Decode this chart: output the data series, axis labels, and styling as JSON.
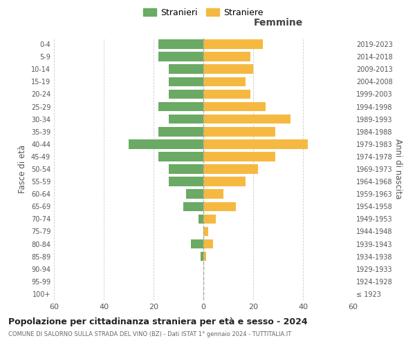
{
  "age_groups": [
    "100+",
    "95-99",
    "90-94",
    "85-89",
    "80-84",
    "75-79",
    "70-74",
    "65-69",
    "60-64",
    "55-59",
    "50-54",
    "45-49",
    "40-44",
    "35-39",
    "30-34",
    "25-29",
    "20-24",
    "15-19",
    "10-14",
    "5-9",
    "0-4"
  ],
  "birth_years": [
    "≤ 1923",
    "1924-1928",
    "1929-1933",
    "1934-1938",
    "1939-1943",
    "1944-1948",
    "1949-1953",
    "1954-1958",
    "1959-1963",
    "1964-1968",
    "1969-1973",
    "1974-1978",
    "1979-1983",
    "1984-1988",
    "1989-1993",
    "1994-1998",
    "1999-2003",
    "2004-2008",
    "2009-2013",
    "2014-2018",
    "2019-2023"
  ],
  "males": [
    0,
    0,
    0,
    1,
    5,
    0,
    2,
    8,
    7,
    14,
    14,
    18,
    30,
    18,
    14,
    18,
    14,
    14,
    14,
    18,
    18
  ],
  "females": [
    0,
    0,
    0,
    1,
    4,
    2,
    5,
    13,
    8,
    17,
    22,
    29,
    42,
    29,
    35,
    25,
    19,
    17,
    20,
    19,
    24
  ],
  "male_color": "#6aaa64",
  "female_color": "#f5b942",
  "background_color": "#ffffff",
  "grid_color": "#cccccc",
  "title": "Popolazione per cittadinanza straniera per età e sesso - 2024",
  "subtitle": "COMUNE DI SALORNO SULLA STRADA DEL VINO (BZ) - Dati ISTAT 1° gennaio 2024 - TUTTITALIA.IT",
  "xlabel_right": "Femmine",
  "ylabel_left": "Fasce di età",
  "ylabel_right": "Anni di nascita",
  "legend_stranieri": "Stranieri",
  "legend_straniere": "Straniere",
  "xlim": 60,
  "center_line_color": "#aaaaaa"
}
